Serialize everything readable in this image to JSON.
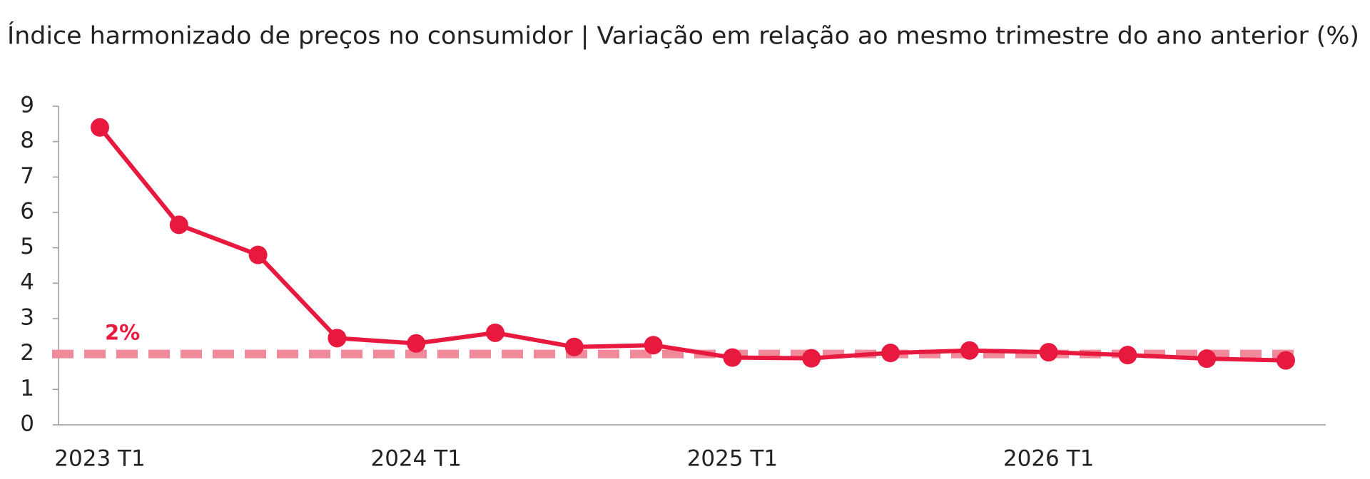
{
  "chart_data": {
    "type": "line",
    "title": "Índice harmonizado de preços no consumidor | Variação em relação ao mesmo trimestre do ano anterior (%)",
    "categories": [
      "2023 T1",
      null,
      null,
      null,
      "2024 T1",
      null,
      null,
      null,
      "2025 T1",
      null,
      null,
      null,
      "2026 T1",
      null,
      null,
      null
    ],
    "values": [
      8.4,
      5.65,
      4.8,
      2.45,
      2.3,
      2.6,
      2.2,
      2.25,
      1.9,
      1.88,
      2.03,
      2.1,
      2.05,
      1.97,
      1.87,
      1.82
    ],
    "color": "#e8193f",
    "reference_line": {
      "value": 2,
      "label": "2%",
      "color": "#f08a9a"
    },
    "ylim": [
      0,
      9
    ],
    "yticks": [
      0,
      1,
      2,
      3,
      4,
      5,
      6,
      7,
      8,
      9
    ],
    "grid": false
  }
}
